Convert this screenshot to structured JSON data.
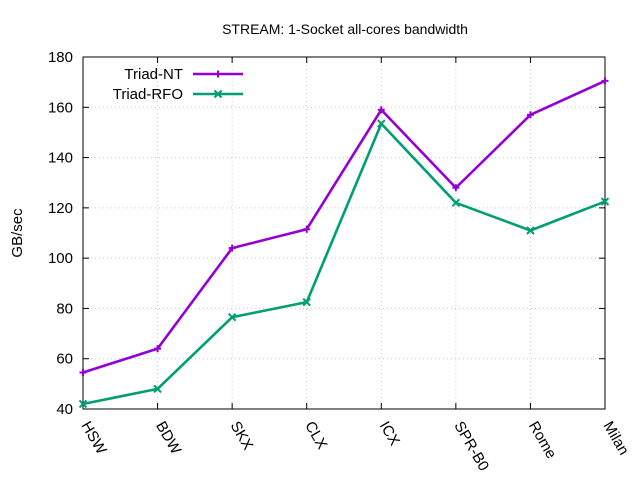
{
  "chart_data": {
    "type": "line",
    "title": "STREAM: 1-Socket all-cores bandwidth",
    "ylabel": "GB/sec",
    "xlabel": "",
    "categories": [
      "HSW",
      "BDW",
      "SKX",
      "CLX",
      "ICX",
      "SPR-B0",
      "Rome",
      "Milan"
    ],
    "ylim": [
      40,
      180
    ],
    "yticks": [
      40,
      60,
      80,
      100,
      120,
      140,
      160,
      180
    ],
    "grid": true,
    "legend_position": "top-left",
    "series": [
      {
        "name": "Triad-NT",
        "color": "#9400d3",
        "marker": "plus",
        "values": [
          54.5,
          64,
          104,
          111.5,
          159,
          128,
          157,
          170.5
        ]
      },
      {
        "name": "Triad-RFO",
        "color": "#009e73",
        "marker": "cross",
        "values": [
          42,
          48,
          76.5,
          82.5,
          153.5,
          122,
          111,
          122.5
        ]
      }
    ]
  }
}
